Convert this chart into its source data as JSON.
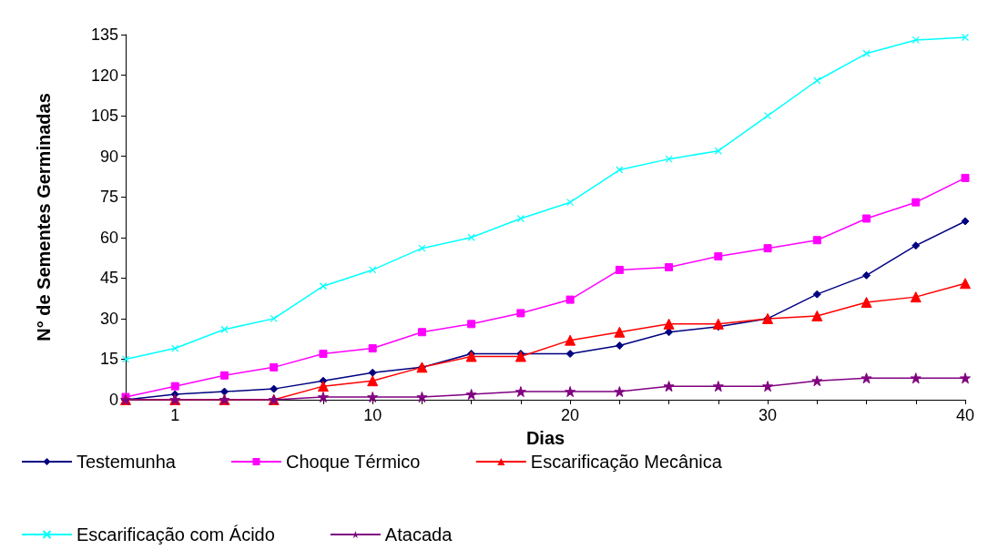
{
  "chart_data": {
    "type": "line",
    "xlabel": "Dias",
    "ylabel": "N° de Sementes Germinadas",
    "categories": [
      null,
      "1",
      null,
      null,
      null,
      "10",
      null,
      null,
      null,
      "20",
      null,
      null,
      null,
      "30",
      null,
      null,
      null,
      "40"
    ],
    "ylim": [
      0,
      135
    ],
    "yticks": [
      0,
      15,
      30,
      45,
      60,
      75,
      90,
      105,
      120,
      135
    ],
    "grid": false,
    "legend": "bottom",
    "series": [
      {
        "name": "Testemunha",
        "color": "#000080",
        "marker": "diamond",
        "values": [
          0,
          2,
          3,
          4,
          7,
          10,
          12,
          17,
          17,
          17,
          20,
          25,
          27,
          30,
          39,
          46,
          57,
          66
        ]
      },
      {
        "name": "Choque Térmico",
        "color": "#ff00ff",
        "marker": "square",
        "values": [
          1,
          5,
          9,
          12,
          17,
          19,
          25,
          28,
          32,
          37,
          48,
          49,
          53,
          56,
          59,
          67,
          73,
          82
        ]
      },
      {
        "name": "Escarificação Mecânica",
        "color": "#ff0000",
        "marker": "triangle",
        "values": [
          0,
          0,
          0,
          0,
          5,
          7,
          12,
          16,
          16,
          22,
          25,
          28,
          28,
          30,
          31,
          36,
          38,
          43
        ]
      },
      {
        "name": "Escarificação com Ácido",
        "color": "#00ffff",
        "marker": "cross",
        "values": [
          15,
          19,
          26,
          30,
          42,
          48,
          56,
          60,
          67,
          73,
          85,
          89,
          92,
          105,
          118,
          128,
          133,
          134
        ]
      },
      {
        "name": "Atacada",
        "color": "#800080",
        "marker": "star",
        "values": [
          0,
          0,
          0,
          0,
          1,
          1,
          1,
          2,
          3,
          3,
          3,
          5,
          5,
          5,
          7,
          8,
          8,
          8
        ]
      }
    ]
  }
}
